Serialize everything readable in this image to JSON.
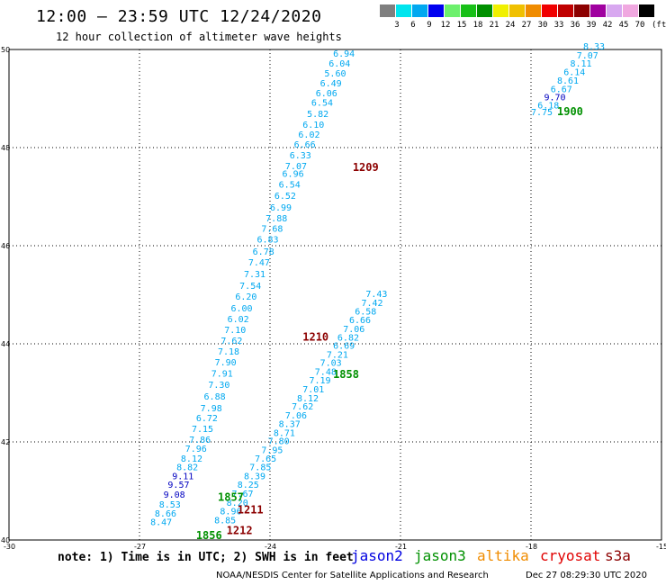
{
  "header": {
    "title": "12:00 — 23:59 UTC 12/24/2020",
    "subtitle": "12 hour collection of altimeter wave heights"
  },
  "legend": {
    "unit": "(ft)",
    "items": [
      {
        "label": "3",
        "color": "#7f7f7f"
      },
      {
        "label": "6",
        "color": "#00e5ee"
      },
      {
        "label": "9",
        "color": "#00a8f0"
      },
      {
        "label": "12",
        "color": "#0000f0"
      },
      {
        "label": "15",
        "color": "#6cf06c"
      },
      {
        "label": "18",
        "color": "#18c018"
      },
      {
        "label": "21",
        "color": "#009000"
      },
      {
        "label": "24",
        "color": "#f0f000"
      },
      {
        "label": "27",
        "color": "#f0c000"
      },
      {
        "label": "30",
        "color": "#f08c00"
      },
      {
        "label": "33",
        "color": "#f00000"
      },
      {
        "label": "36",
        "color": "#c00000"
      },
      {
        "label": "39",
        "color": "#8c0000"
      },
      {
        "label": "42",
        "color": "#a000a0"
      },
      {
        "label": "45",
        "color": "#d8a8f0"
      },
      {
        "label": "70",
        "color": "#f0a8e0"
      },
      {
        "label": "",
        "color": "#000000"
      }
    ]
  },
  "axes": {
    "lon_ticks": [
      -30,
      -27,
      -24,
      -21,
      -18,
      -15
    ],
    "lat_ticks": [
      40,
      42,
      44,
      46,
      48,
      50
    ],
    "lon_range": [
      -30,
      -15
    ],
    "lat_range": [
      40,
      50
    ]
  },
  "colors": {
    "cyan": "#00a8f0",
    "dark_cyan": "#00b0e8",
    "blue": "#0000c0",
    "green": "#009000",
    "dark_red": "#8c0000"
  },
  "tracks": [
    {
      "name": "track-west",
      "values": [
        "6.94",
        "6.04",
        "5.60",
        "6.49",
        "6.06",
        "6.54",
        "5.82",
        "6.10",
        "6.02",
        "6.66",
        "6.33",
        "7.07",
        "6.96",
        "6.54",
        "6.52",
        "6.99",
        "7.88",
        "7.68",
        "6.83",
        "6.78",
        "7.47",
        "7.31",
        "7.54",
        "6.20",
        "6.00",
        "6.02",
        "7.10",
        "7.62",
        "7.18",
        "7.90",
        "7.91",
        "7.30",
        "6.88",
        "7.98",
        "6.72",
        "7.15",
        "7.86",
        "7.96",
        "8.12",
        "8.82",
        "9.11",
        "9.57",
        "9.08",
        "8.53",
        "8.66",
        "8.47"
      ],
      "lat": [
        49.85,
        49.65,
        49.45,
        49.25,
        49.05,
        48.85,
        48.62,
        48.4,
        48.2,
        48.0,
        47.78,
        47.56,
        47.4,
        47.18,
        46.95,
        46.72,
        46.5,
        46.28,
        46.06,
        45.82,
        45.6,
        45.36,
        45.12,
        44.9,
        44.66,
        44.44,
        44.22,
        44.0,
        43.78,
        43.56,
        43.33,
        43.1,
        42.86,
        42.62,
        42.42,
        42.2,
        41.98,
        41.8,
        41.6,
        41.42,
        41.24,
        41.06,
        40.86,
        40.66,
        40.48,
        40.3
      ],
      "lon": [
        -22.55,
        -22.65,
        -22.75,
        -22.85,
        -22.95,
        -23.05,
        -23.15,
        -23.25,
        -23.35,
        -23.45,
        -23.55,
        -23.65,
        -23.72,
        -23.8,
        -23.9,
        -24.0,
        -24.1,
        -24.2,
        -24.3,
        -24.4,
        -24.5,
        -24.6,
        -24.7,
        -24.8,
        -24.9,
        -24.98,
        -25.05,
        -25.13,
        -25.2,
        -25.27,
        -25.35,
        -25.42,
        -25.52,
        -25.6,
        -25.7,
        -25.8,
        -25.86,
        -25.95,
        -26.05,
        -26.15,
        -26.25,
        -26.35,
        -26.45,
        -26.55,
        -26.65,
        -26.75
      ],
      "colors": [
        "c",
        "c",
        "c",
        "c",
        "c",
        "c",
        "c",
        "c",
        "c",
        "c",
        "c",
        "c",
        "c",
        "c",
        "c",
        "c",
        "c",
        "c",
        "c",
        "c",
        "c",
        "c",
        "c",
        "c",
        "c",
        "c",
        "c",
        "c",
        "c",
        "c",
        "c",
        "c",
        "c",
        "c",
        "c",
        "c",
        "c",
        "c",
        "c",
        "c",
        "b",
        "b",
        "b",
        "c",
        "c",
        "c"
      ]
    },
    {
      "name": "track-middle",
      "values": [
        "7.43",
        "7.42",
        "6.58",
        "6.66",
        "7.06",
        "6.82",
        "6.69",
        "7.21",
        "7.03",
        "7.48",
        "7.19",
        "7.01",
        "8.12",
        "7.62",
        "7.06",
        "8.37",
        "8.71",
        "7.80",
        "7.95",
        "7.65",
        "7.85",
        "8.39",
        "8.25",
        "7.67",
        "8.20",
        "8.96",
        "8.85"
      ],
      "lat": [
        44.95,
        44.77,
        44.6,
        44.42,
        44.24,
        44.06,
        43.9,
        43.72,
        43.55,
        43.37,
        43.19,
        43.01,
        42.83,
        42.66,
        42.48,
        42.3,
        42.12,
        41.95,
        41.77,
        41.6,
        41.42,
        41.24,
        41.06,
        40.88,
        40.7,
        40.52,
        40.34
      ],
      "lon": [
        -21.8,
        -21.9,
        -22.05,
        -22.18,
        -22.32,
        -22.45,
        -22.55,
        -22.7,
        -22.85,
        -22.97,
        -23.1,
        -23.25,
        -23.38,
        -23.5,
        -23.65,
        -23.8,
        -23.92,
        -24.05,
        -24.2,
        -24.35,
        -24.47,
        -24.6,
        -24.75,
        -24.88,
        -25.0,
        -25.15,
        -25.28
      ],
      "colors": [
        "c",
        "c",
        "c",
        "c",
        "c",
        "c",
        "c",
        "c",
        "c",
        "c",
        "c",
        "c",
        "c",
        "c",
        "c",
        "c",
        "c",
        "c",
        "c",
        "c",
        "c",
        "c",
        "c",
        "c",
        "c",
        "c",
        "c"
      ]
    },
    {
      "name": "track-east",
      "values": [
        "8.33",
        "7.07",
        "8.11",
        "6.14",
        "8.61",
        "6.67",
        "9.70",
        "6.18",
        "7.75"
      ],
      "lat": [
        50.0,
        49.82,
        49.65,
        49.48,
        49.3,
        49.13,
        48.96,
        48.8,
        48.66
      ],
      "lon": [
        -16.8,
        -16.95,
        -17.1,
        -17.25,
        -17.4,
        -17.55,
        -17.7,
        -17.85,
        -18.0
      ],
      "colors": [
        "c",
        "c",
        "c",
        "c",
        "c",
        "c",
        "b",
        "c",
        "c"
      ]
    }
  ],
  "time_labels": [
    {
      "text": "1900",
      "lat": 48.66,
      "lon": -17.4,
      "color": "g"
    },
    {
      "text": "1209",
      "lat": 47.52,
      "lon": -22.1,
      "color": "r"
    },
    {
      "text": "1210",
      "lat": 44.06,
      "lon": -23.25,
      "color": "r"
    },
    {
      "text": "1858",
      "lat": 43.3,
      "lon": -22.55,
      "color": "g"
    },
    {
      "text": "1857",
      "lat": 40.8,
      "lon": -25.2,
      "color": "g"
    },
    {
      "text": "1211",
      "lat": 40.54,
      "lon": -24.75,
      "color": "r"
    },
    {
      "text": "1212",
      "lat": 40.12,
      "lon": -25.0,
      "color": "r"
    },
    {
      "text": "1856",
      "lat": 40.02,
      "lon": -25.7,
      "color": "g"
    }
  ],
  "footer": {
    "note": "note: 1) Time is in UTC; 2) SWH is in feet",
    "satellites": [
      {
        "label": "jason2",
        "color": "#0000e0"
      },
      {
        "label": "jason3",
        "color": "#009000"
      },
      {
        "label": "altika",
        "color": "#f08c00"
      },
      {
        "label": "cryosat",
        "color": "#e00000"
      },
      {
        "label": "s3a",
        "color": "#8c0000"
      }
    ],
    "credit": "NOAA/NESDIS Center for Satellite Applications and Research",
    "timestamp": "Dec 27 08:29:30 UTC 2020"
  }
}
